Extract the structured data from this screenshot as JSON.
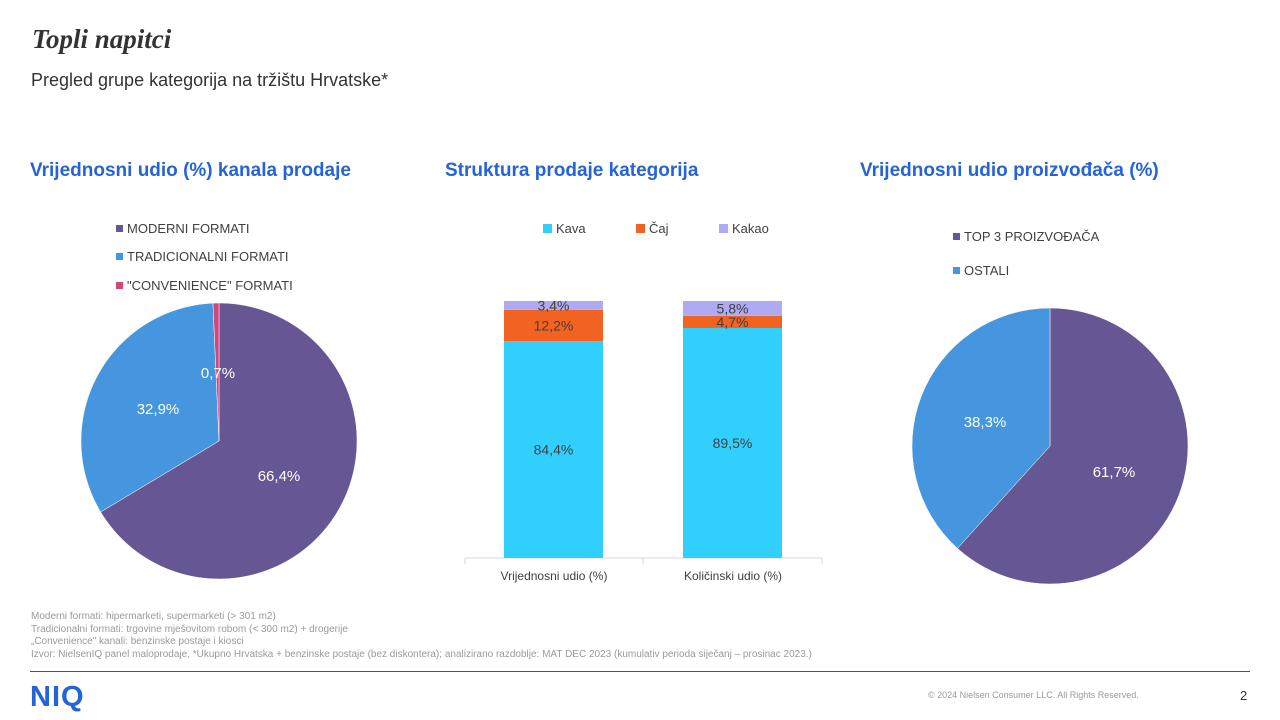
{
  "page": {
    "title": "Topli napitci",
    "subtitle": "Pregled grupe kategorija na tržištu Hrvatske*"
  },
  "chart_data": [
    {
      "type": "pie",
      "title": "Vrijednosni udio (%) kanala prodaje",
      "legend_position": "top-left",
      "slices": [
        {
          "name": "MODERNI FORMATI",
          "value": 66.4,
          "label": "66,4%",
          "color": "#675694"
        },
        {
          "name": "TRADICIONALNI FORMATI",
          "value": 32.9,
          "label": "32,9%",
          "color": "#4596de"
        },
        {
          "name": "\"CONVENIENCE\" FORMATI",
          "value": 0.7,
          "label": "0,7%",
          "color": "#d4477a"
        }
      ]
    },
    {
      "type": "bar",
      "stacked": true,
      "title": "Struktura prodaje kategorija",
      "legend_position": "top",
      "categories": [
        "Vrijednosni udio (%)",
        "Količinski udio (%)"
      ],
      "ylim": [
        0,
        100
      ],
      "series": [
        {
          "name": "Kava",
          "color": "#31d0fc",
          "values": [
            84.4,
            89.5
          ],
          "labels": [
            "84,4%",
            "89,5%"
          ]
        },
        {
          "name": "Čaj",
          "color": "#f26322",
          "values": [
            12.2,
            4.7
          ],
          "labels": [
            "12,2%",
            "4,7%"
          ]
        },
        {
          "name": "Kakao",
          "color": "#aeabf2",
          "values": [
            3.4,
            5.8
          ],
          "labels": [
            "3,4%",
            "5,8%"
          ]
        }
      ]
    },
    {
      "type": "pie",
      "title": "Vrijednosni udio proizvođača (%)",
      "legend_position": "top-left",
      "slices": [
        {
          "name": "TOP 3 PROIZVOĐAČA",
          "value": 61.7,
          "label": "61,7%",
          "color": "#675694"
        },
        {
          "name": "OSTALI",
          "value": 38.3,
          "label": "38,3%",
          "color": "#4596de"
        }
      ]
    }
  ],
  "footnotes": [
    "Moderni formati: hipermarketi, supermarketi (> 301 m2)",
    "Tradicionalni formati: trgovine mješovitom robom (< 300 m2) + drogerije",
    "„Convenience\" kanali: benzinske postaje i kiosci",
    "Izvor: NielsenIQ panel maloprodaje, *Ukupno Hrvatska + benzinske postaje (bez diskontera); analizirano razdoblje: MAT DEC 2023 (kumulativ perioda siječanj – prosinac 2023.)"
  ],
  "footer": {
    "logo": "NIQ",
    "copyright": "© 2024 Nielsen Consumer LLC. All Rights Reserved.",
    "page_number": "2"
  }
}
